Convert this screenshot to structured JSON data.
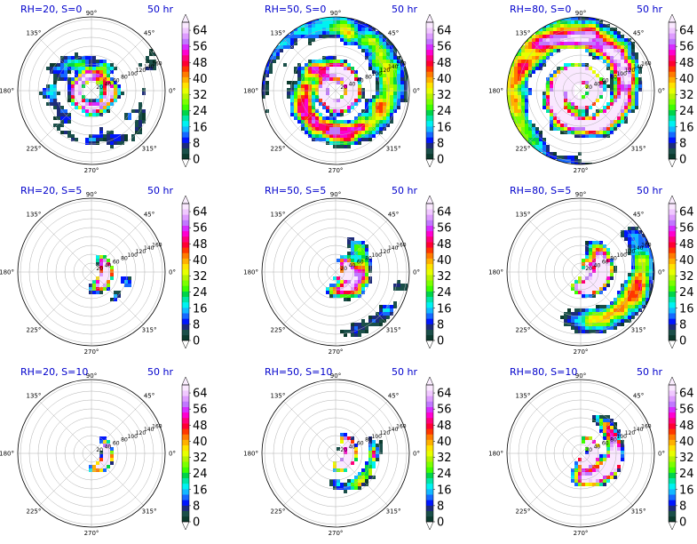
{
  "chart_data": {
    "type": "heatmap",
    "layout": {
      "rows": 3,
      "cols": 3
    },
    "projection": "polar",
    "time_label": "50 hr",
    "angle_ticks": [
      "0°",
      "45°",
      "90°",
      "135°",
      "180°",
      "225°",
      "270°",
      "315°"
    ],
    "radial_ticks": [
      "20",
      "40",
      "60",
      "80",
      "100",
      "120",
      "140",
      "160"
    ],
    "colorbar": {
      "ticks": [
        "0",
        "8",
        "16",
        "24",
        "32",
        "40",
        "48",
        "56",
        "64"
      ],
      "range": [
        0,
        68
      ],
      "extend": "both",
      "colors": [
        "#0c3b2e",
        "#1a4f49",
        "#1d2b7a",
        "#0016ff",
        "#1669ff",
        "#12b8ff",
        "#00f2f2",
        "#00e6a6",
        "#00d44a",
        "#3dff00",
        "#7cff00",
        "#b6f400",
        "#e7ff00",
        "#ffe300",
        "#ffb000",
        "#ff7b00",
        "#ff3700",
        "#ff0033",
        "#ff007a",
        "#ff00cf",
        "#d72cff",
        "#c078ff",
        "#de9cff",
        "#f0c8ff",
        "#fae8ff"
      ]
    },
    "panels": [
      {
        "title": "RH=20, S=0",
        "rh": 20,
        "s": 0,
        "time": "50 hr"
      },
      {
        "title": "RH=50, S=0",
        "rh": 50,
        "s": 0,
        "time": "50 hr"
      },
      {
        "title": "RH=80, S=0",
        "rh": 80,
        "s": 0,
        "time": "50 hr"
      },
      {
        "title": "RH=20, S=5",
        "rh": 20,
        "s": 5,
        "time": "50 hr"
      },
      {
        "title": "RH=50, S=5",
        "rh": 50,
        "s": 5,
        "time": "50 hr"
      },
      {
        "title": "RH=80, S=5",
        "rh": 80,
        "s": 5,
        "time": "50 hr"
      },
      {
        "title": "RH=20, S=10",
        "rh": 20,
        "s": 10,
        "time": "50 hr"
      },
      {
        "title": "RH=50, S=10",
        "rh": 50,
        "s": 10,
        "time": "50 hr"
      },
      {
        "title": "RH=80, S=10",
        "rh": 80,
        "s": 10,
        "time": "50 hr"
      }
    ]
  }
}
